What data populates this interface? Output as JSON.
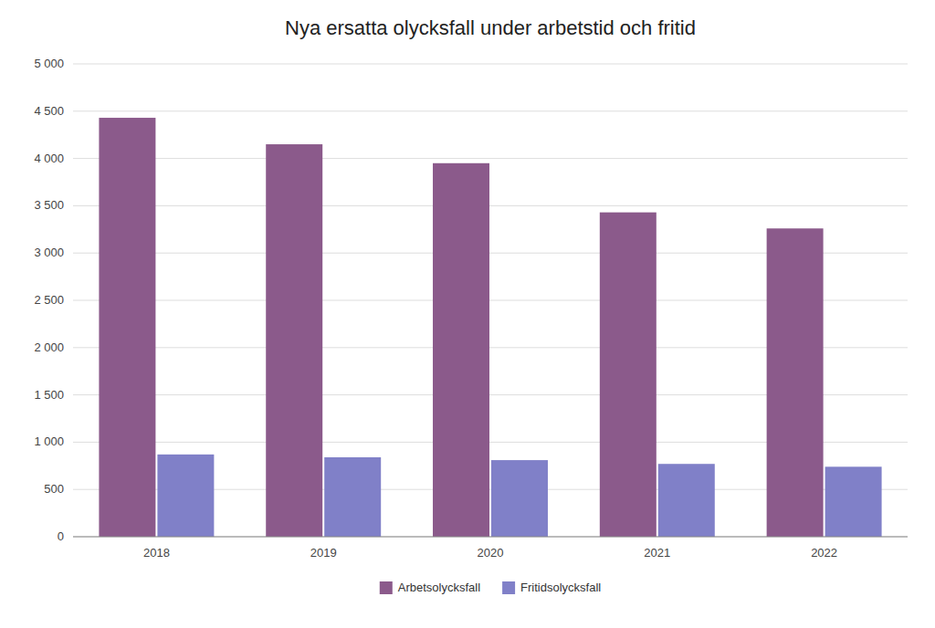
{
  "chart_data": {
    "type": "bar",
    "title": "Nya ersatta olycksfall under arbetstid och fritid",
    "categories": [
      "2018",
      "2019",
      "2020",
      "2021",
      "2022"
    ],
    "series": [
      {
        "name": "Arbetsolycksfall",
        "color": "#8B5A8B",
        "values": [
          4430,
          4150,
          3950,
          3430,
          3260
        ]
      },
      {
        "name": "Fritidsolycksfall",
        "color": "#8080C8",
        "values": [
          870,
          840,
          810,
          770,
          740
        ]
      }
    ],
    "ylim": [
      0,
      5000
    ],
    "yticks": [
      0,
      500,
      {
        "value": 1000,
        "label": "1 000"
      },
      {
        "value": 1500,
        "label": "1 500"
      },
      {
        "value": 2000,
        "label": "2 000"
      },
      {
        "value": 2500,
        "label": "2 500"
      },
      {
        "value": 3000,
        "label": "3 000"
      },
      {
        "value": 3500,
        "label": "3 500"
      },
      {
        "value": 4000,
        "label": "4 000"
      },
      {
        "value": 4500,
        "label": "4 500"
      },
      {
        "value": 5000,
        "label": "5 000"
      }
    ],
    "grid": true,
    "legend": "bottom"
  }
}
